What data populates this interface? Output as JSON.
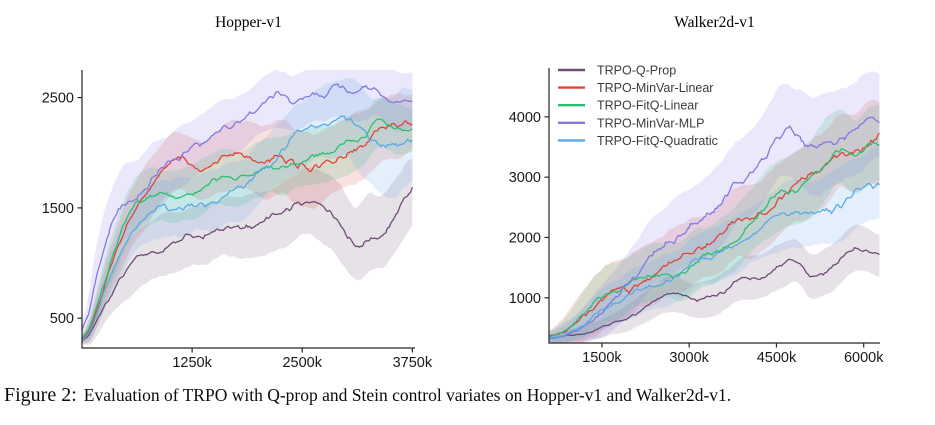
{
  "figure": {
    "caption": {
      "label": "Figure 2:",
      "text": "Evaluation of TRPO with Q-prop and Stein control variates on Hopper-v1 and Walker2d-v1."
    }
  },
  "colors": {
    "background": "#ffffff",
    "axis": "#262626",
    "tick_label": "#1a1a1a",
    "title": "#000000",
    "legend_text": "#3c3c3c",
    "band_opacity": 0.17
  },
  "chart_data": [
    {
      "type": "line",
      "title": "Hopper-v1",
      "xlabel": "",
      "ylabel": "",
      "x_unit": "environment steps (thousands)",
      "xlim": [
        0,
        3780
      ],
      "ylim": [
        230,
        2750
      ],
      "grid": false,
      "xticks": {
        "values": [
          1250,
          2500,
          3750
        ],
        "labels": [
          "1250k",
          "2500k",
          "3750k"
        ]
      },
      "yticks": {
        "values": [
          500,
          1500,
          2500
        ],
        "labels": [
          "500",
          "1500",
          "2500"
        ]
      },
      "legend": {
        "show": false,
        "position": null
      },
      "x": [
        0,
        125,
        250,
        375,
        500,
        625,
        750,
        875,
        1000,
        1125,
        1250,
        1375,
        1500,
        1625,
        1750,
        1875,
        2000,
        2125,
        2250,
        2375,
        2500,
        2625,
        2750,
        2875,
        3000,
        3125,
        3250,
        3375,
        3500,
        3625,
        3750
      ],
      "series": [
        {
          "name": "TRPO-Q-Prop",
          "color": "#6f4d75",
          "y": [
            250,
            400,
            620,
            800,
            950,
            1030,
            1100,
            1150,
            1180,
            1210,
            1240,
            1260,
            1300,
            1330,
            1310,
            1330,
            1350,
            1390,
            1420,
            1480,
            1550,
            1570,
            1520,
            1420,
            1250,
            1150,
            1280,
            1240,
            1350,
            1500,
            1700
          ],
          "band": [
            30,
            120,
            180,
            220,
            250,
            260,
            270,
            270,
            270,
            270,
            270,
            270,
            270,
            270,
            280,
            280,
            290,
            290,
            300,
            300,
            300,
            310,
            320,
            330,
            340,
            350,
            350,
            340,
            330,
            320,
            300
          ]
        },
        {
          "name": "TRPO-MinVar-Linear",
          "color": "#e04539",
          "y": [
            250,
            450,
            800,
            1050,
            1300,
            1500,
            1650,
            1800,
            1900,
            1950,
            1880,
            1820,
            1900,
            1960,
            2000,
            1980,
            1900,
            1930,
            1950,
            1900,
            1850,
            1830,
            1900,
            1960,
            2000,
            2040,
            2100,
            2220,
            2250,
            2230,
            2300
          ],
          "band": [
            30,
            130,
            200,
            230,
            250,
            260,
            270,
            270,
            260,
            260,
            260,
            270,
            280,
            290,
            300,
            310,
            320,
            330,
            340,
            350,
            350,
            350,
            340,
            330,
            320,
            310,
            300,
            290,
            280,
            270,
            260
          ]
        },
        {
          "name": "TRPO-FitQ-Linear",
          "color": "#2ebf6f",
          "y": [
            250,
            480,
            850,
            1120,
            1400,
            1550,
            1600,
            1620,
            1600,
            1630,
            1620,
            1700,
            1750,
            1780,
            1750,
            1800,
            1850,
            1900,
            1850,
            1900,
            1950,
            2000,
            1950,
            2000,
            2050,
            2100,
            2150,
            2330,
            2250,
            2180,
            2230
          ],
          "band": [
            30,
            120,
            190,
            220,
            240,
            250,
            250,
            250,
            250,
            250,
            250,
            250,
            250,
            250,
            250,
            250,
            250,
            250,
            260,
            260,
            260,
            260,
            260,
            260,
            260,
            250,
            250,
            240,
            230,
            220,
            210
          ]
        },
        {
          "name": "TRPO-MinVar-MLP",
          "color": "#8379e0",
          "y": [
            250,
            700,
            1150,
            1450,
            1560,
            1600,
            1720,
            1820,
            1900,
            1980,
            2050,
            2100,
            2160,
            2230,
            2250,
            2300,
            2400,
            2480,
            2520,
            2430,
            2500,
            2550,
            2480,
            2660,
            2540,
            2560,
            2590,
            2610,
            2480,
            2450,
            2500
          ],
          "band": [
            40,
            250,
            320,
            330,
            330,
            320,
            310,
            300,
            290,
            280,
            270,
            260,
            250,
            250,
            250,
            250,
            250,
            250,
            250,
            260,
            260,
            260,
            270,
            270,
            270,
            270,
            270,
            260,
            260,
            250,
            250
          ]
        },
        {
          "name": "TRPO-FitQ-Quadratic",
          "color": "#5ba9e6",
          "y": [
            250,
            420,
            750,
            1000,
            1200,
            1350,
            1450,
            1500,
            1480,
            1500,
            1520,
            1550,
            1560,
            1600,
            1650,
            1700,
            1800,
            1900,
            2000,
            2100,
            2150,
            2250,
            2300,
            2300,
            2370,
            2250,
            2100,
            2030,
            2050,
            2100,
            2180
          ],
          "band": [
            30,
            110,
            170,
            200,
            220,
            240,
            250,
            260,
            270,
            270,
            270,
            270,
            270,
            270,
            270,
            270,
            280,
            280,
            280,
            290,
            290,
            300,
            310,
            330,
            350,
            380,
            400,
            420,
            430,
            420,
            400
          ]
        }
      ]
    },
    {
      "type": "line",
      "title": "Walker2d-v1",
      "xlabel": "",
      "ylabel": "",
      "x_unit": "environment steps (thousands)",
      "xlim": [
        590,
        6280
      ],
      "ylim": [
        250,
        4810
      ],
      "grid": false,
      "xticks": {
        "values": [
          1500,
          3000,
          4500,
          6000
        ],
        "labels": [
          "1500k",
          "3000k",
          "4500k",
          "6000k"
        ]
      },
      "yticks": {
        "values": [
          1000,
          2000,
          3000,
          4000
        ],
        "labels": [
          "1000",
          "2000",
          "3000",
          "4000"
        ]
      },
      "legend": {
        "show": true,
        "position": "upper left"
      },
      "x": [
        600,
        850,
        1100,
        1350,
        1600,
        1850,
        2100,
        2350,
        2600,
        2850,
        3100,
        3350,
        3600,
        3850,
        4100,
        4350,
        4600,
        4850,
        5100,
        5350,
        5600,
        5850,
        6100,
        6270
      ],
      "series": [
        {
          "name": "TRPO-Q-Prop",
          "color": "#6f4d75",
          "y": [
            320,
            360,
            400,
            450,
            540,
            620,
            760,
            900,
            1080,
            1020,
            950,
            1000,
            1080,
            1300,
            1320,
            1420,
            1520,
            1660,
            1280,
            1450,
            1600,
            1850,
            1750,
            1680
          ],
          "band": [
            60,
            80,
            110,
            140,
            170,
            200,
            230,
            260,
            280,
            300,
            310,
            320,
            330,
            340,
            350,
            350,
            360,
            360,
            370,
            380,
            380,
            370,
            360,
            350
          ]
        },
        {
          "name": "TRPO-MinVar-Linear",
          "color": "#e04539",
          "y": [
            350,
            420,
            600,
            850,
            1080,
            1130,
            1250,
            1380,
            1550,
            1700,
            1780,
            1850,
            2080,
            2350,
            2250,
            2500,
            2700,
            2850,
            3000,
            3150,
            3500,
            3400,
            3560,
            3600
          ],
          "band": [
            100,
            250,
            400,
            500,
            520,
            520,
            520,
            520,
            530,
            540,
            550,
            560,
            570,
            580,
            580,
            590,
            600,
            610,
            620,
            630,
            640,
            650,
            660,
            660
          ]
        },
        {
          "name": "TRPO-FitQ-Linear",
          "color": "#2ebf6f",
          "y": [
            330,
            420,
            650,
            900,
            1120,
            1170,
            1350,
            1420,
            1450,
            1390,
            1600,
            1680,
            1800,
            2050,
            2300,
            2550,
            2800,
            2750,
            2950,
            3300,
            3570,
            3290,
            3500,
            3620
          ],
          "band": [
            90,
            200,
            320,
            420,
            450,
            460,
            470,
            470,
            480,
            490,
            500,
            510,
            520,
            530,
            550,
            560,
            580,
            600,
            620,
            640,
            650,
            660,
            670,
            670
          ]
        },
        {
          "name": "TRPO-MinVar-MLP",
          "color": "#8379e0",
          "y": [
            320,
            390,
            480,
            640,
            880,
            1100,
            1400,
            1750,
            1900,
            2070,
            2230,
            2420,
            2650,
            2900,
            3150,
            3450,
            3780,
            3700,
            3500,
            3560,
            3680,
            3800,
            3980,
            4060
          ],
          "band": [
            80,
            180,
            280,
            380,
            450,
            500,
            540,
            570,
            600,
            620,
            640,
            660,
            680,
            700,
            720,
            740,
            750,
            760,
            770,
            770,
            770,
            760,
            750,
            740
          ]
        },
        {
          "name": "TRPO-FitQ-Quadratic",
          "color": "#5ba9e6",
          "y": [
            320,
            400,
            500,
            680,
            880,
            950,
            1100,
            1180,
            1270,
            1400,
            1620,
            1700,
            1780,
            1900,
            2050,
            2200,
            2350,
            2400,
            2380,
            2430,
            2500,
            2750,
            2870,
            2920
          ],
          "band": [
            70,
            140,
            220,
            300,
            350,
            380,
            400,
            410,
            420,
            430,
            440,
            450,
            460,
            470,
            490,
            500,
            520,
            530,
            540,
            560,
            570,
            580,
            590,
            600
          ]
        }
      ]
    }
  ]
}
